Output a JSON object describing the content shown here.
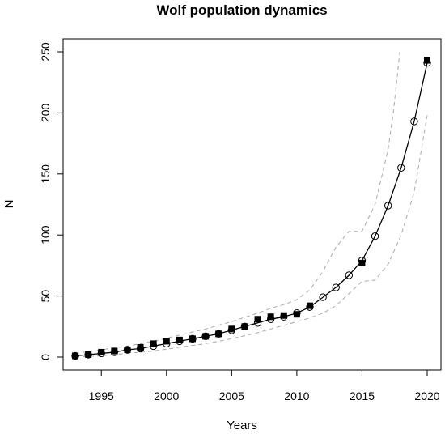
{
  "chart_data": {
    "type": "line",
    "title": "Wolf population dynamics",
    "xlabel": "Years",
    "ylabel": "N",
    "xlim": [
      1993,
      2020
    ],
    "ylim": [
      0,
      250
    ],
    "x_ticks": [
      1995,
      2000,
      2005,
      2010,
      2015,
      2020
    ],
    "y_ticks": [
      0,
      50,
      100,
      150,
      200,
      250
    ],
    "grid": false,
    "colors": {
      "line": "#000000",
      "band": "#a9a9a9",
      "frame": "#000000"
    },
    "series": [
      {
        "style": "line-open-circles",
        "points": [
          [
            1993,
            1
          ],
          [
            1994,
            2
          ],
          [
            1995,
            3
          ],
          [
            1996,
            4
          ],
          [
            1997,
            6
          ],
          [
            1998,
            7
          ],
          [
            1999,
            9
          ],
          [
            2000,
            11
          ],
          [
            2001,
            13
          ],
          [
            2002,
            15
          ],
          [
            2003,
            17
          ],
          [
            2004,
            19
          ],
          [
            2005,
            22
          ],
          [
            2006,
            25
          ],
          [
            2007,
            28
          ],
          [
            2008,
            31
          ],
          [
            2009,
            33
          ],
          [
            2010,
            36
          ],
          [
            2011,
            41
          ],
          [
            2012,
            49
          ],
          [
            2013,
            57
          ],
          [
            2014,
            67
          ],
          [
            2015,
            79
          ],
          [
            2016,
            99
          ],
          [
            2017,
            124
          ],
          [
            2018,
            155
          ],
          [
            2019,
            193
          ],
          [
            2020,
            241
          ]
        ]
      },
      {
        "style": "filled-squares",
        "points": [
          [
            1993,
            1
          ],
          [
            1994,
            2
          ],
          [
            1995,
            4
          ],
          [
            1996,
            5
          ],
          [
            1997,
            6
          ],
          [
            1998,
            8
          ],
          [
            1999,
            11
          ],
          [
            2000,
            13
          ],
          [
            2001,
            14
          ],
          [
            2002,
            15
          ],
          [
            2003,
            17
          ],
          [
            2004,
            19
          ],
          [
            2005,
            23
          ],
          [
            2006,
            25
          ],
          [
            2007,
            31
          ],
          [
            2008,
            33
          ],
          [
            2009,
            34
          ],
          [
            2010,
            35
          ],
          [
            2011,
            42
          ],
          [
            2015,
            77
          ],
          [
            2020,
            243
          ]
        ]
      },
      {
        "style": "dashed-upper-bound",
        "points": [
          [
            1993,
            3
          ],
          [
            1995,
            6
          ],
          [
            1997,
            9
          ],
          [
            1999,
            13
          ],
          [
            2001,
            18
          ],
          [
            2003,
            23
          ],
          [
            2005,
            29
          ],
          [
            2007,
            36
          ],
          [
            2008,
            40
          ],
          [
            2009,
            43
          ],
          [
            2010,
            47
          ],
          [
            2011,
            55
          ],
          [
            2012,
            70
          ],
          [
            2013,
            90
          ],
          [
            2014,
            103
          ],
          [
            2015,
            103
          ],
          [
            2016,
            125
          ],
          [
            2017,
            170
          ],
          [
            2017.4,
            200
          ],
          [
            2017.9,
            250
          ]
        ]
      },
      {
        "style": "dashed-lower-bound",
        "points": [
          [
            1993,
            0
          ],
          [
            1995,
            1
          ],
          [
            1997,
            3
          ],
          [
            1999,
            5
          ],
          [
            2001,
            8
          ],
          [
            2003,
            11
          ],
          [
            2005,
            15
          ],
          [
            2007,
            20
          ],
          [
            2008,
            23
          ],
          [
            2009,
            26
          ],
          [
            2010,
            29
          ],
          [
            2011,
            32
          ],
          [
            2012,
            36
          ],
          [
            2013,
            42
          ],
          [
            2014,
            52
          ],
          [
            2015,
            62
          ],
          [
            2016,
            63
          ],
          [
            2017,
            76
          ],
          [
            2018,
            100
          ],
          [
            2019,
            135
          ],
          [
            2020,
            198
          ]
        ]
      }
    ]
  }
}
